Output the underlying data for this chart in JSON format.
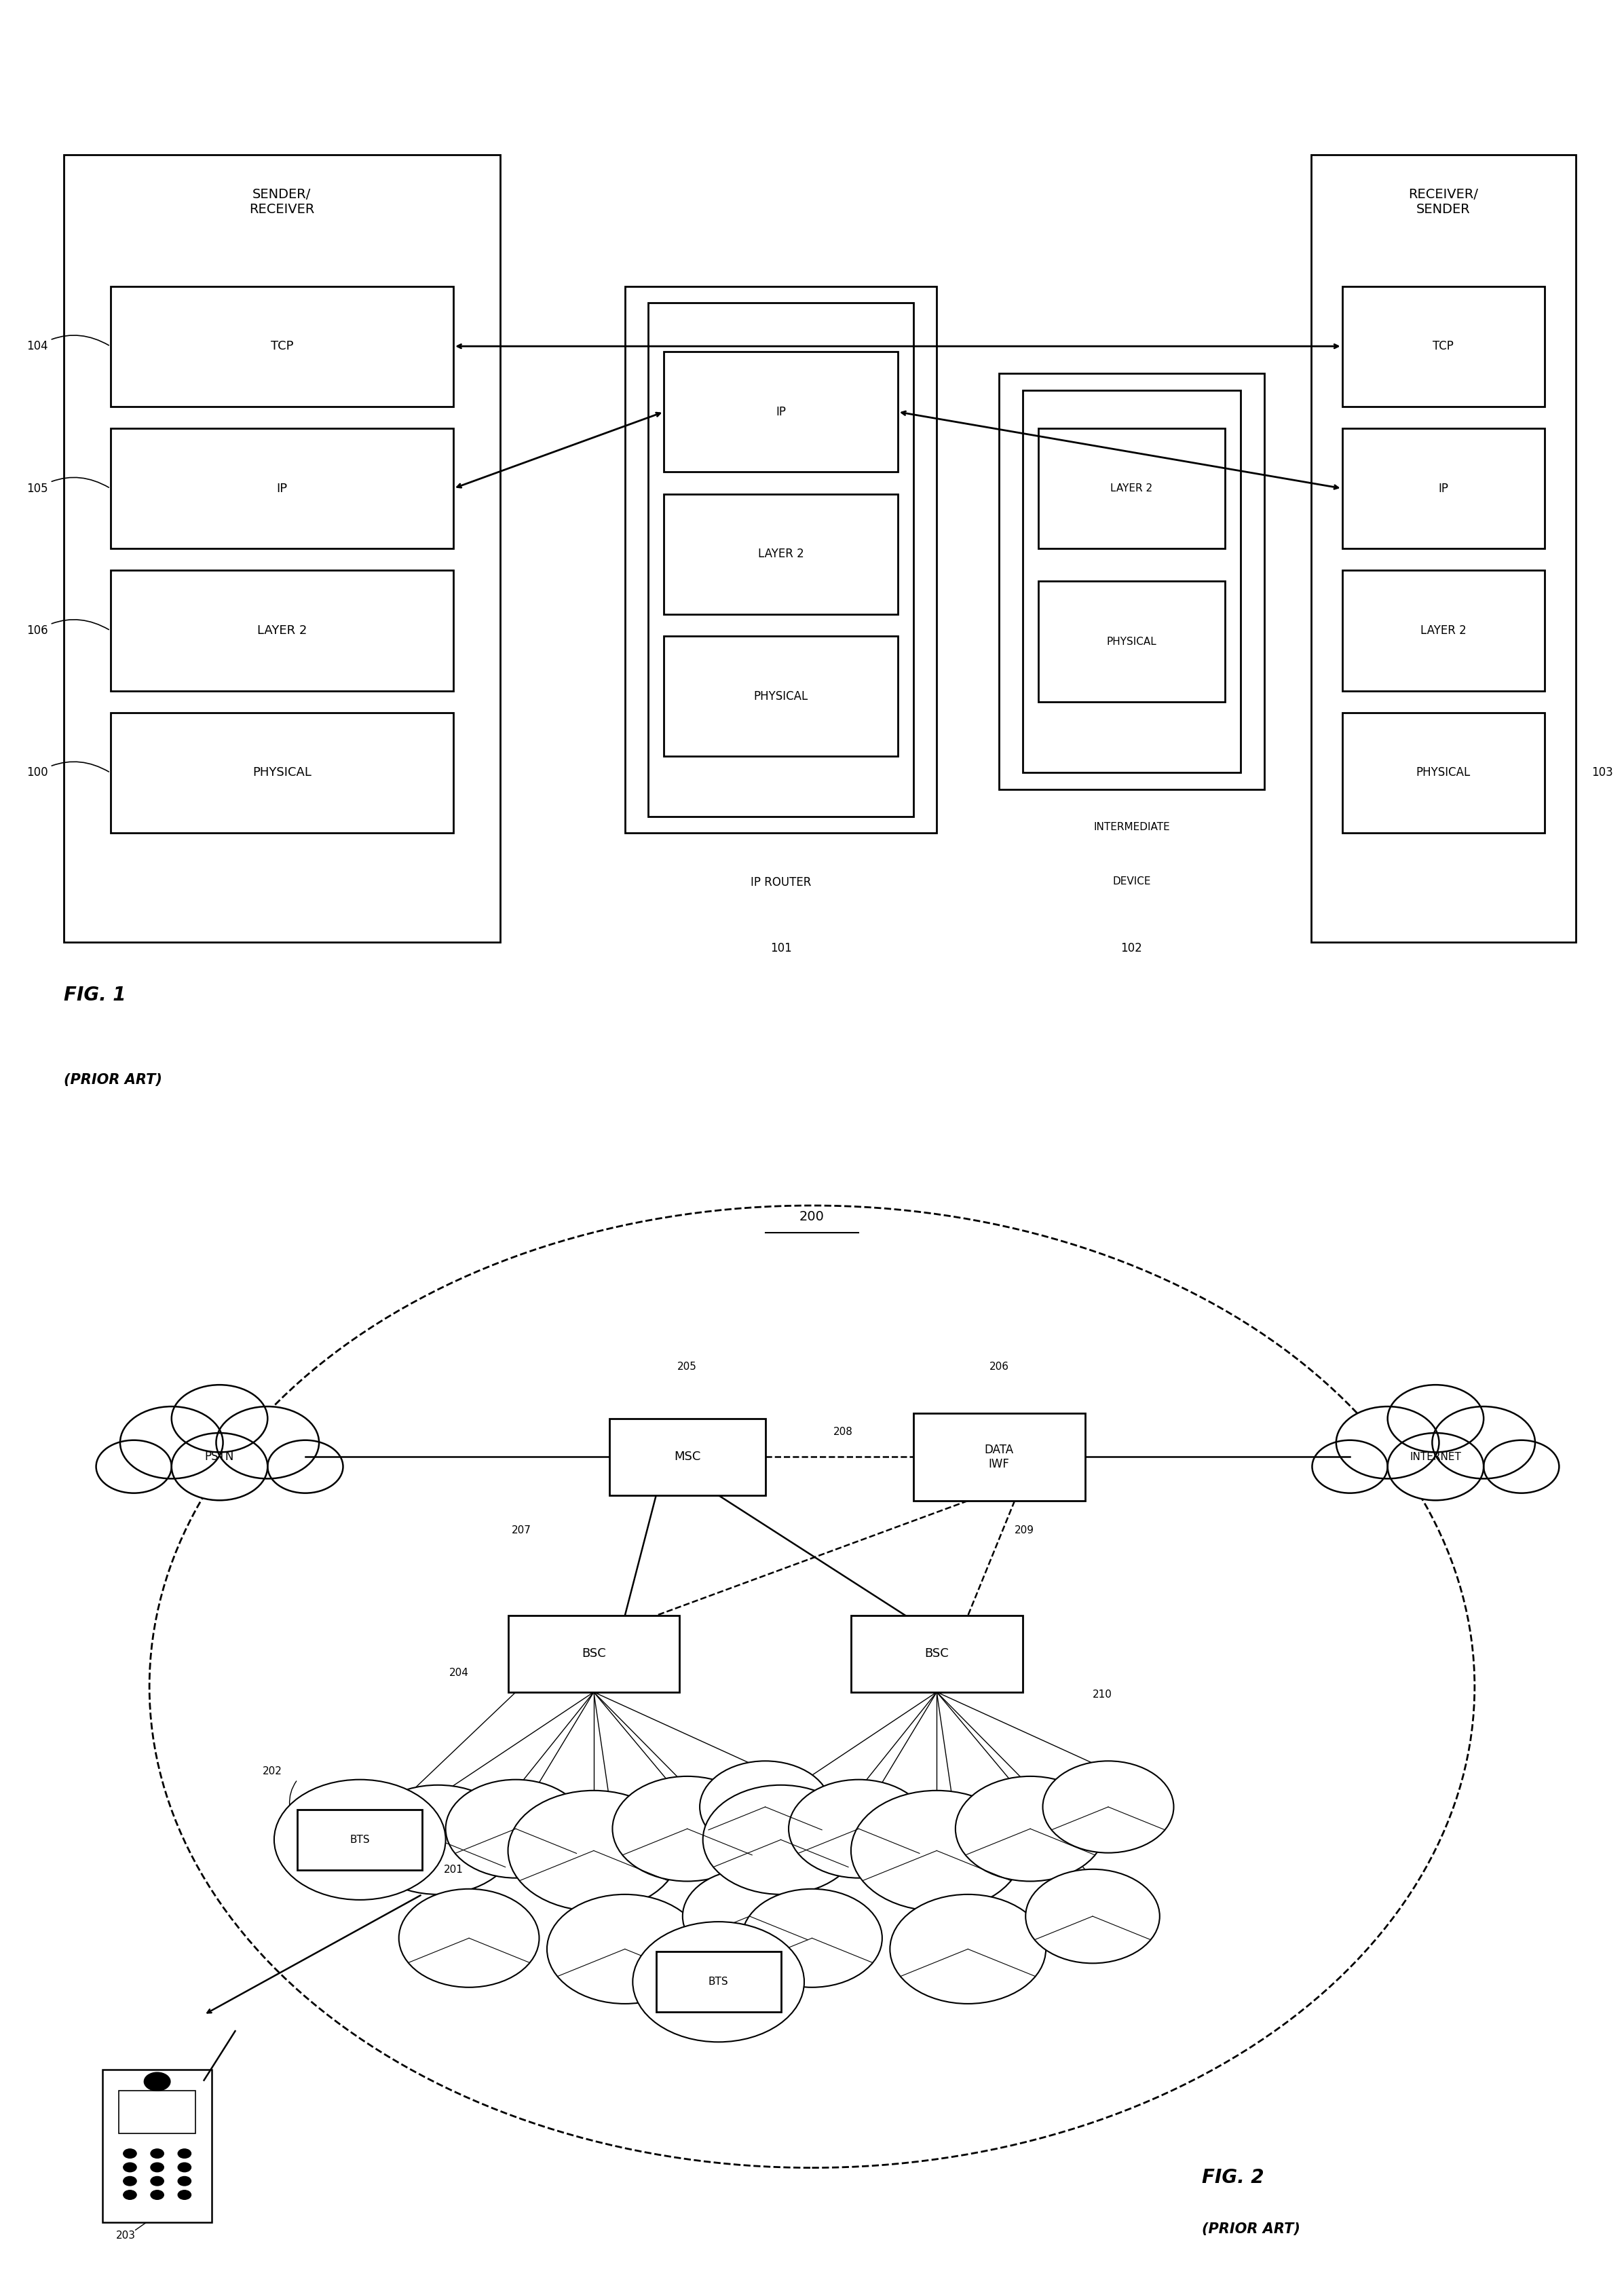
{
  "fig1": {
    "title": "FIG. 1",
    "subtitle": "(PRIOR ART)",
    "sender_receiver_label": "SENDER/\nRECEIVER",
    "receiver_sender_label": "RECEIVER/\nSENDER",
    "layers_left": [
      "TCP",
      "IP",
      "LAYER 2",
      "PHYSICAL"
    ],
    "labels_left": [
      "104",
      "105",
      "106",
      "100"
    ],
    "layers_router": [
      "IP",
      "LAYER 2",
      "PHYSICAL"
    ],
    "router_label": "IP ROUTER",
    "router_num": "101",
    "layers_intermediate": [
      "LAYER 2",
      "PHYSICAL"
    ],
    "intermediate_label": "INTERMEDIATE\nDEVICE",
    "intermediate_num": "102",
    "layers_right": [
      "TCP",
      "IP",
      "LAYER 2",
      "PHYSICAL"
    ],
    "receiver_num": "103"
  },
  "fig2": {
    "title": "FIG. 2",
    "subtitle": "(PRIOR ART)",
    "num_200": "200"
  },
  "bg_color": "#ffffff",
  "line_color": "#000000"
}
